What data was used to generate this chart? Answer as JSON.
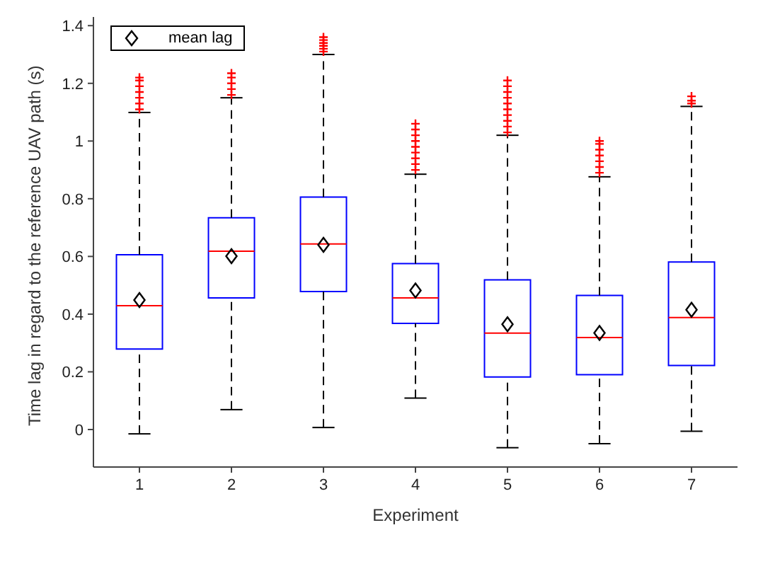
{
  "chart_data": {
    "type": "box",
    "xlabel": "Experiment",
    "ylabel": "Time lag in regard to the reference UAV path (s)",
    "categories": [
      "1",
      "2",
      "3",
      "4",
      "5",
      "6",
      "7"
    ],
    "ylim": [
      -0.13,
      1.43
    ],
    "yticks": [
      0,
      0.2,
      0.4,
      0.6,
      0.8,
      1,
      1.2,
      1.4
    ],
    "grid": false,
    "legend": "top left",
    "series": [
      {
        "color": "#0000ff",
        "boxes": [
          {
            "low": -0.015,
            "q1": 0.279,
            "median": 0.429,
            "q3": 0.606,
            "high": 1.099,
            "outliers": [
              1.11,
              1.13,
              1.15,
              1.17,
              1.19,
              1.21,
              1.22
            ]
          },
          {
            "low": 0.069,
            "q1": 0.456,
            "median": 0.618,
            "q3": 0.734,
            "high": 1.15,
            "outliers": [
              1.16,
              1.18,
              1.2,
              1.22,
              1.235
            ]
          },
          {
            "low": 0.007,
            "q1": 0.478,
            "median": 0.643,
            "q3": 0.806,
            "high": 1.3,
            "outliers": [
              1.31,
              1.32,
              1.33,
              1.34,
              1.35,
              1.36
            ]
          },
          {
            "low": 0.109,
            "q1": 0.368,
            "median": 0.456,
            "q3": 0.575,
            "high": 0.885,
            "outliers": [
              0.9,
              0.92,
              0.94,
              0.96,
              0.98,
              1,
              1.02,
              1.04,
              1.06
            ]
          },
          {
            "low": -0.063,
            "q1": 0.182,
            "median": 0.334,
            "q3": 0.519,
            "high": 1.02,
            "outliers": [
              1.03,
              1.05,
              1.07,
              1.09,
              1.11,
              1.13,
              1.15,
              1.17,
              1.19,
              1.21
            ]
          },
          {
            "low": -0.049,
            "q1": 0.19,
            "median": 0.319,
            "q3": 0.465,
            "high": 0.876,
            "outliers": [
              0.89,
              0.91,
              0.93,
              0.95,
              0.97,
              0.99,
              1
            ]
          },
          {
            "low": -0.006,
            "q1": 0.222,
            "median": 0.388,
            "q3": 0.581,
            "high": 1.12,
            "outliers": [
              1.13,
              1.14,
              1.155
            ]
          }
        ]
      },
      {
        "type": "scatter",
        "name": "mean lag",
        "color": "#000000",
        "marker": "diamond",
        "x": [
          "1",
          "2",
          "3",
          "4",
          "5",
          "6",
          "7"
        ],
        "values": [
          0.449,
          0.601,
          0.64,
          0.482,
          0.365,
          0.335,
          0.415
        ]
      }
    ]
  }
}
